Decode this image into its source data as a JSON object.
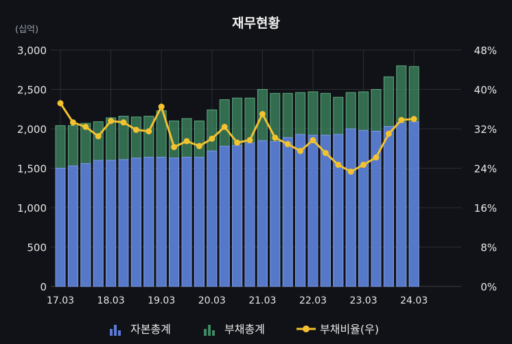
{
  "chart_data": {
    "type": "bar",
    "title": "재무현황",
    "y_unit": "(십억)",
    "ylim_left": [
      0,
      3000
    ],
    "yticks_left": [
      "0",
      "500",
      "1,000",
      "1,500",
      "2,000",
      "2,500",
      "3,000"
    ],
    "ylim_right": [
      0,
      48
    ],
    "yticks_right": [
      "0%",
      "8%",
      "16%",
      "24%",
      "32%",
      "40%",
      "48%"
    ],
    "x_tick_labels": [
      "17.03",
      "18.03",
      "19.03",
      "20.03",
      "21.03",
      "22.03",
      "23.03",
      "24.03"
    ],
    "x_tick_positions": [
      0,
      4,
      8,
      12,
      16,
      20,
      24,
      28
    ],
    "categories": [
      "17.03",
      "17.06",
      "17.09",
      "17.12",
      "18.03",
      "18.06",
      "18.09",
      "18.12",
      "19.03",
      "19.06",
      "19.09",
      "19.12",
      "20.03",
      "20.06",
      "20.09",
      "20.12",
      "21.03",
      "21.06",
      "21.09",
      "21.12",
      "22.03",
      "22.06",
      "22.09",
      "22.12",
      "23.03",
      "23.06",
      "23.09",
      "23.12",
      "24.03"
    ],
    "grid": true,
    "legend_position": "bottom",
    "series": [
      {
        "name": "자본총계",
        "kind": "bar",
        "color": "#5a7ad6",
        "values": [
          1500,
          1530,
          1560,
          1600,
          1600,
          1610,
          1630,
          1640,
          1640,
          1630,
          1640,
          1640,
          1720,
          1780,
          1790,
          1820,
          1850,
          1840,
          1890,
          1930,
          1920,
          1920,
          1930,
          2000,
          1980,
          1970,
          2030,
          2080,
          2090
        ]
      },
      {
        "name": "부채총계",
        "kind": "bar",
        "color": "#3f8a63",
        "values": [
          2040,
          2040,
          2070,
          2090,
          2140,
          2160,
          2150,
          2160,
          2230,
          2100,
          2130,
          2100,
          2240,
          2370,
          2390,
          2390,
          2500,
          2450,
          2450,
          2460,
          2470,
          2450,
          2400,
          2460,
          2470,
          2500,
          2660,
          2800,
          2790
        ]
      },
      {
        "name": "부채비율(우)",
        "kind": "line",
        "color": "#f2c230",
        "values": [
          37.2,
          33.3,
          32.4,
          30.5,
          33.6,
          33.3,
          31.8,
          31.5,
          36.5,
          28.3,
          29.5,
          28.5,
          30.0,
          32.4,
          29.2,
          29.7,
          35.0,
          30.2,
          28.9,
          27.5,
          29.7,
          27.1,
          24.7,
          23.3,
          24.7,
          26.2,
          31.0,
          33.8,
          34.0
        ]
      }
    ]
  }
}
